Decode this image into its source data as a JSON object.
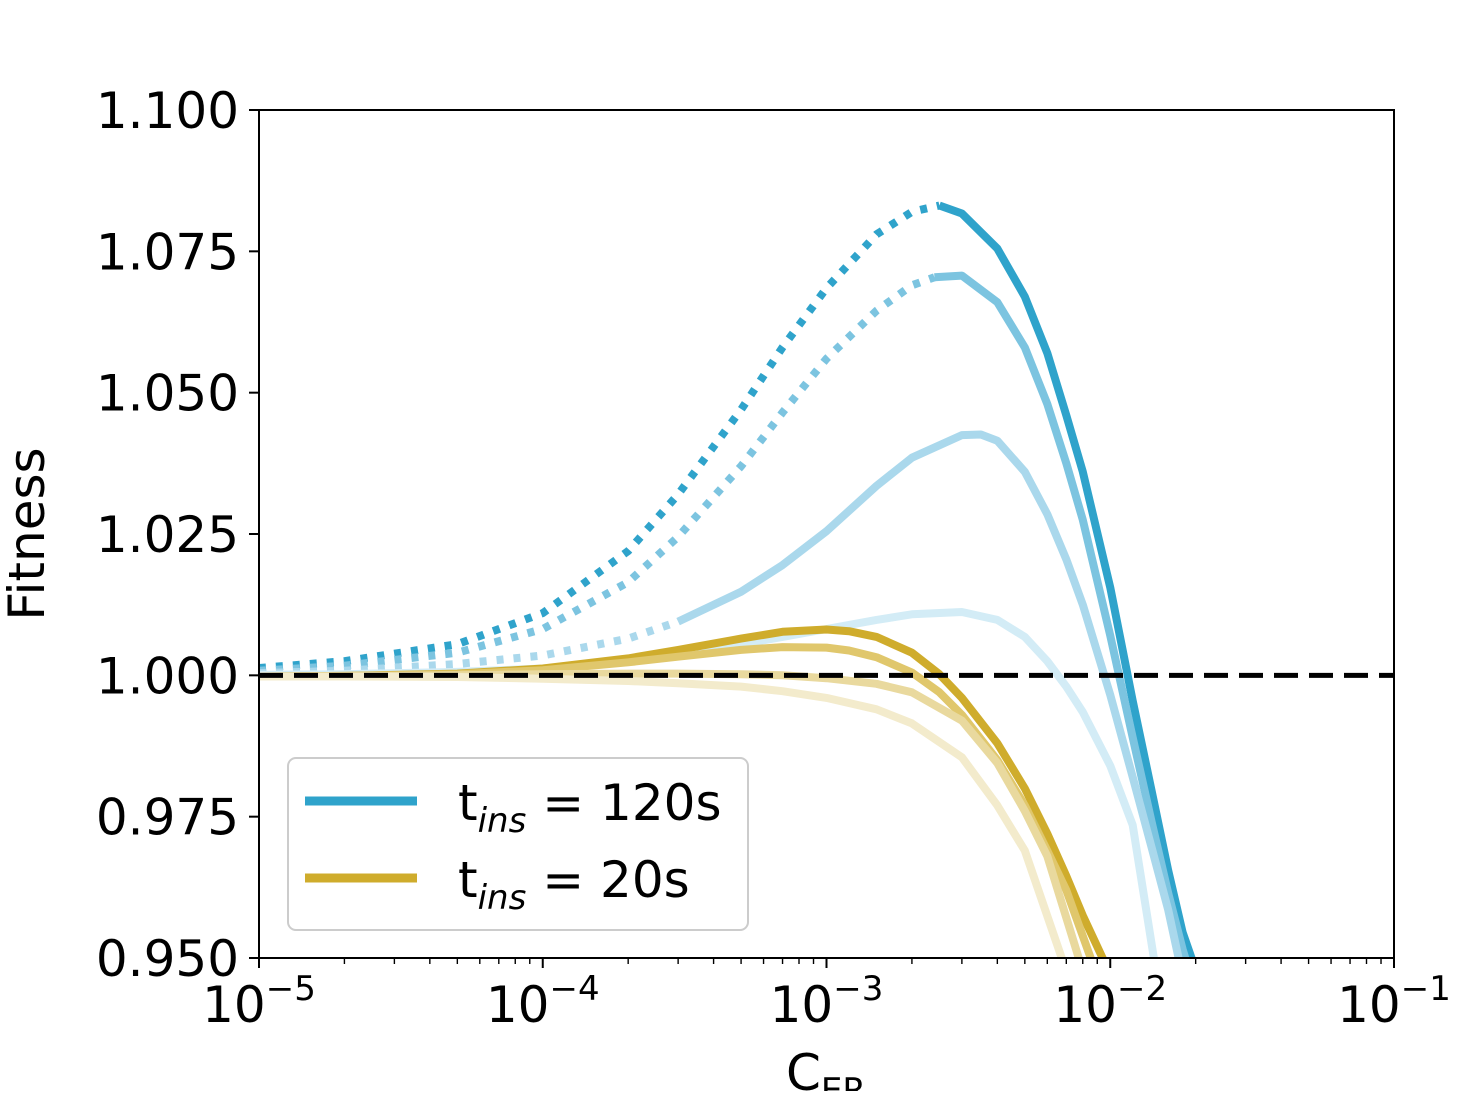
{
  "chart_data": {
    "type": "line",
    "xlabel_main": "C",
    "xlabel_sub": "ER",
    "ylabel": "Fitness",
    "xscale": "log",
    "xlim": [
      1e-05,
      0.1
    ],
    "ylim": [
      0.95,
      1.1
    ],
    "grid": false,
    "legend_position": "bottom-left",
    "x_tick_labels": [
      {
        "value": 1e-05,
        "base": "10",
        "exp": "−5"
      },
      {
        "value": 0.0001,
        "base": "10",
        "exp": "−4"
      },
      {
        "value": 0.001,
        "base": "10",
        "exp": "−3"
      },
      {
        "value": 0.01,
        "base": "10",
        "exp": "−2"
      },
      {
        "value": 0.1,
        "base": "10",
        "exp": "−1"
      }
    ],
    "y_tick_labels": [
      {
        "value": 1.1,
        "label": "1.100"
      },
      {
        "value": 1.075,
        "label": "1.075"
      },
      {
        "value": 1.05,
        "label": "1.050"
      },
      {
        "value": 1.025,
        "label": "1.025"
      },
      {
        "value": 1.0,
        "label": "1.000"
      },
      {
        "value": 0.975,
        "label": "0.975"
      },
      {
        "value": 0.95,
        "label": "0.950"
      }
    ],
    "legend": [
      {
        "prefix": "t",
        "sub": "ins",
        "suffix": " = 120s",
        "color": "#2fa3cb"
      },
      {
        "prefix": "t",
        "sub": "ins",
        "suffix": " = 20s",
        "color": "#cfac2c"
      }
    ],
    "reference_line": {
      "y": 1.0,
      "style": "dashed",
      "color": "#000000"
    },
    "series": [
      {
        "group": "120s",
        "color": "#2fa3cb",
        "opacity": 1.0,
        "dotted_until": 0.0027,
        "x": [
          1e-05,
          2e-05,
          5e-05,
          0.0001,
          0.0002,
          0.0003,
          0.0005,
          0.0007,
          0.001,
          0.0015,
          0.002,
          0.0025,
          0.003,
          0.004,
          0.005,
          0.006,
          0.007,
          0.008,
          0.01,
          0.012,
          0.014,
          0.016,
          0.018,
          0.0195
        ],
        "y": [
          1.0013,
          1.0025,
          1.0055,
          1.011,
          1.022,
          1.032,
          1.047,
          1.058,
          1.0685,
          1.078,
          1.082,
          1.0831,
          1.0817,
          1.0755,
          1.067,
          1.057,
          1.046,
          1.036,
          1.0155,
          0.9955,
          0.9795,
          0.9655,
          0.9545,
          0.9495
        ]
      },
      {
        "group": "120s",
        "color": "#7cc4e0",
        "opacity": 1.0,
        "dotted_until": 0.0024,
        "x": [
          1e-05,
          2e-05,
          5e-05,
          0.0001,
          0.0002,
          0.0003,
          0.0005,
          0.0007,
          0.001,
          0.0015,
          0.002,
          0.0024,
          0.003,
          0.004,
          0.005,
          0.006,
          0.007,
          0.008,
          0.01,
          0.012,
          0.014,
          0.016,
          0.018,
          0.0185
        ],
        "y": [
          1.0008,
          1.0017,
          1.004,
          1.0082,
          1.0165,
          1.0245,
          1.037,
          1.0465,
          1.056,
          1.0645,
          1.069,
          1.0704,
          1.0707,
          1.066,
          1.058,
          1.048,
          1.0375,
          1.0275,
          1.007,
          0.989,
          0.974,
          0.9615,
          0.9515,
          0.9495
        ]
      },
      {
        "group": "120s",
        "color": "#aad8ec",
        "opacity": 1.0,
        "dotted_until": 0.00048,
        "x": [
          1e-05,
          2e-05,
          5e-05,
          0.0001,
          0.0002,
          0.0003,
          0.0005,
          0.0007,
          0.001,
          0.0015,
          0.002,
          0.003,
          0.0035,
          0.004,
          0.005,
          0.006,
          0.007,
          0.008,
          0.01,
          0.012,
          0.014,
          0.016,
          0.0175
        ],
        "y": [
          1.0004,
          1.0008,
          1.002,
          1.0035,
          1.0065,
          1.0095,
          1.0148,
          1.0195,
          1.0255,
          1.0335,
          1.0385,
          1.0425,
          1.0426,
          1.0415,
          1.036,
          1.0285,
          1.0205,
          1.0125,
          0.9965,
          0.982,
          0.9695,
          0.9585,
          0.9495
        ]
      },
      {
        "group": "120s",
        "color": "#d3ecf6",
        "opacity": 1.0,
        "dotted_until": 0,
        "x": [
          1e-05,
          2e-05,
          5e-05,
          0.0001,
          0.0002,
          0.0003,
          0.0005,
          0.0007,
          0.001,
          0.0015,
          0.002,
          0.003,
          0.004,
          0.005,
          0.006,
          0.007,
          0.008,
          0.01,
          0.012,
          0.0143
        ],
        "y": [
          1.0001,
          1.0002,
          1.0006,
          1.0012,
          1.0025,
          1.0037,
          1.0055,
          1.0068,
          1.0082,
          1.0098,
          1.0108,
          1.0112,
          1.0098,
          1.0068,
          1.0025,
          0.998,
          0.9935,
          0.984,
          0.9735,
          0.9495
        ]
      },
      {
        "group": "20s",
        "color": "#cfac2c",
        "opacity": 1.0,
        "dotted_until": 0,
        "x": [
          1e-05,
          2e-05,
          5e-05,
          0.0001,
          0.0002,
          0.0003,
          0.0005,
          0.0007,
          0.001,
          0.0012,
          0.0015,
          0.002,
          0.0025,
          0.003,
          0.004,
          0.005,
          0.006,
          0.007,
          0.008,
          0.0095
        ],
        "y": [
          0.9998,
          0.9999,
          1.0003,
          1.0012,
          1.003,
          1.0045,
          1.0065,
          1.0077,
          1.0081,
          1.0078,
          1.0068,
          1.004,
          1.0002,
          0.996,
          0.988,
          0.98,
          0.972,
          0.9645,
          0.9575,
          0.9495
        ]
      },
      {
        "group": "20s",
        "color": "#e0c76c",
        "opacity": 1.0,
        "dotted_until": 0,
        "x": [
          1e-05,
          2e-05,
          5e-05,
          0.0001,
          0.0002,
          0.0003,
          0.0005,
          0.0007,
          0.001,
          0.0012,
          0.0015,
          0.002,
          0.0025,
          0.003,
          0.004,
          0.005,
          0.006,
          0.007,
          0.0086
        ],
        "y": [
          0.9998,
          0.9999,
          1.0002,
          1.0009,
          1.0023,
          1.0033,
          1.0045,
          1.005,
          1.0049,
          1.0044,
          1.0032,
          1.0005,
          0.997,
          0.993,
          0.985,
          0.977,
          0.969,
          0.962,
          0.9495
        ]
      },
      {
        "group": "20s",
        "color": "#e9d99e",
        "opacity": 1.0,
        "dotted_until": 0,
        "x": [
          1e-05,
          2e-05,
          5e-05,
          0.0001,
          0.0002,
          0.0003,
          0.0005,
          0.0007,
          0.001,
          0.0015,
          0.002,
          0.003,
          0.004,
          0.005,
          0.006,
          0.0078
        ],
        "y": [
          0.9998,
          0.9998,
          1.0,
          1.0002,
          1.0003,
          1.0003,
          1.0002,
          1.0,
          0.9995,
          0.9985,
          0.997,
          0.992,
          0.9845,
          0.976,
          0.968,
          0.9495
        ]
      },
      {
        "group": "20s",
        "color": "#f3ebcc",
        "opacity": 1.0,
        "dotted_until": 0,
        "x": [
          1e-05,
          2e-05,
          5e-05,
          0.0001,
          0.0002,
          0.0003,
          0.0005,
          0.0007,
          0.001,
          0.0015,
          0.002,
          0.003,
          0.004,
          0.005,
          0.0068
        ],
        "y": [
          0.9998,
          0.9998,
          0.9997,
          0.9994,
          0.999,
          0.9986,
          0.998,
          0.9972,
          0.996,
          0.994,
          0.9915,
          0.9855,
          0.977,
          0.969,
          0.9495
        ]
      }
    ]
  }
}
